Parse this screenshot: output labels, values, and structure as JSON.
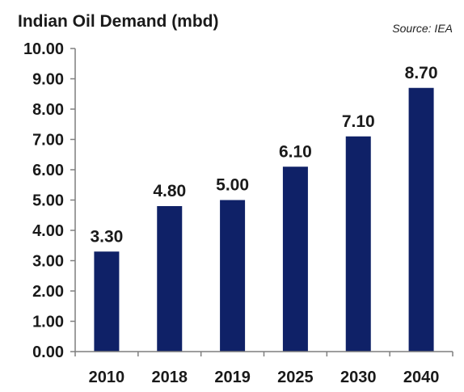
{
  "chart_data": {
    "type": "bar",
    "title": "Indian Oil Demand (mbd)",
    "source": "Source: IEA",
    "categories": [
      "2010",
      "2018",
      "2019",
      "2025",
      "2030",
      "2040"
    ],
    "values": [
      3.3,
      4.8,
      5.0,
      6.1,
      7.1,
      8.7
    ],
    "data_labels": [
      "3.30",
      "4.80",
      "5.00",
      "6.10",
      "7.10",
      "8.70"
    ],
    "xlabel": "",
    "ylabel": "",
    "ylim": [
      0,
      10
    ],
    "yticks": [
      "0.00",
      "1.00",
      "2.00",
      "3.00",
      "4.00",
      "5.00",
      "6.00",
      "7.00",
      "8.00",
      "9.00",
      "10.00"
    ],
    "grid": false,
    "legend": "none",
    "bar_color": "#0f2167",
    "axis_color": "#7f7f7f"
  }
}
